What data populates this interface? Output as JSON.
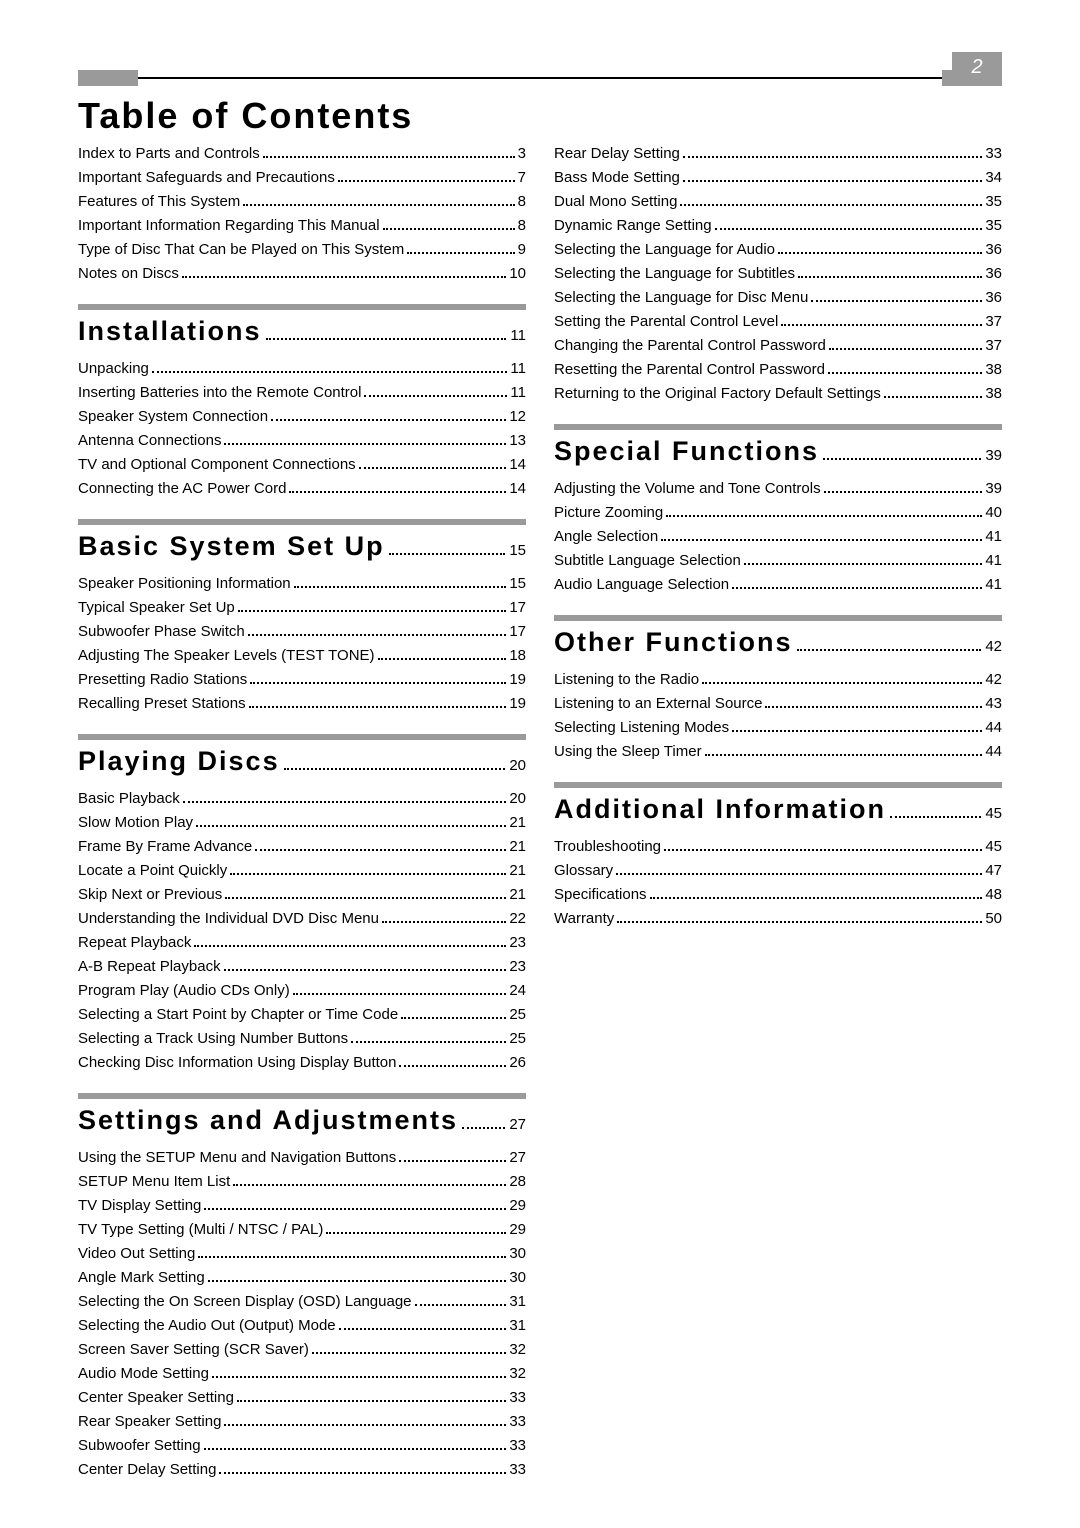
{
  "page": {
    "title": "Table of Contents",
    "page_number": "2",
    "colors": {
      "divider": "#9a9a9a",
      "text": "#000000",
      "page_tab_bg": "#9a9a9a",
      "page_tab_text": "#ffffff"
    }
  },
  "pre_section_items": [
    {
      "label": "Index to Parts and Controls",
      "page": "3"
    },
    {
      "label": "Important Safeguards and Precautions",
      "page": "7"
    },
    {
      "label": "Features of This System",
      "page": "8"
    },
    {
      "label": "Important Information Regarding This Manual",
      "page": "8"
    },
    {
      "label": "Type of Disc That Can be Played on This System",
      "page": "9"
    },
    {
      "label": "Notes on Discs",
      "page": "10"
    }
  ],
  "sections_left": [
    {
      "title": "Installations",
      "page": "11",
      "items": [
        {
          "label": "Unpacking",
          "page": "11"
        },
        {
          "label": "Inserting Batteries into the Remote Control",
          "page": "11"
        },
        {
          "label": "Speaker System Connection",
          "page": "12"
        },
        {
          "label": "Antenna Connections",
          "page": "13"
        },
        {
          "label": "TV and Optional Component Connections",
          "page": "14"
        },
        {
          "label": "Connecting the AC Power Cord",
          "page": "14"
        }
      ]
    },
    {
      "title": "Basic System Set Up",
      "page": "15",
      "items": [
        {
          "label": "Speaker Positioning Information",
          "page": "15"
        },
        {
          "label": "Typical Speaker Set Up",
          "page": "17"
        },
        {
          "label": "Subwoofer Phase Switch",
          "page": "17"
        },
        {
          "label": "Adjusting The Speaker Levels (TEST TONE)",
          "page": "18"
        },
        {
          "label": "Presetting Radio Stations",
          "page": "19"
        },
        {
          "label": "Recalling Preset Stations",
          "page": "19"
        }
      ]
    },
    {
      "title": "Playing Discs",
      "page": "20",
      "items": [
        {
          "label": "Basic Playback",
          "page": "20"
        },
        {
          "label": "Slow Motion Play",
          "page": "21"
        },
        {
          "label": "Frame By Frame Advance",
          "page": "21"
        },
        {
          "label": "Locate a Point Quickly",
          "page": "21"
        },
        {
          "label": "Skip Next or Previous",
          "page": "21"
        },
        {
          "label": "Understanding the Individual DVD Disc Menu",
          "page": "22"
        },
        {
          "label": "Repeat Playback",
          "page": "23"
        },
        {
          "label": "A-B Repeat Playback",
          "page": "23"
        },
        {
          "label": "Program Play (Audio CDs Only)",
          "page": "24"
        },
        {
          "label": "Selecting a Start Point by Chapter or Time Code",
          "page": "25"
        },
        {
          "label": "Selecting a Track Using Number Buttons",
          "page": "25"
        },
        {
          "label": "Checking Disc Information Using Display Button",
          "page": "26"
        }
      ]
    },
    {
      "title": "Settings and Adjustments",
      "page": "27",
      "items": [
        {
          "label": "Using the SETUP Menu and Navigation Buttons",
          "page": "27"
        },
        {
          "label": "SETUP Menu Item List",
          "page": "28"
        },
        {
          "label": "TV Display Setting",
          "page": "29"
        },
        {
          "label": "TV Type Setting (Multi / NTSC / PAL)",
          "page": "29"
        },
        {
          "label": "Video Out Setting",
          "page": "30"
        },
        {
          "label": "Angle Mark Setting",
          "page": "30"
        },
        {
          "label": "Selecting the On Screen Display (OSD) Language",
          "page": "31"
        },
        {
          "label": "Selecting the Audio Out (Output) Mode",
          "page": "31"
        },
        {
          "label": "Screen Saver Setting (SCR Saver)",
          "page": "32"
        },
        {
          "label": "Audio Mode Setting",
          "page": "32"
        },
        {
          "label": "Center Speaker Setting",
          "page": "33"
        },
        {
          "label": "Rear Speaker Setting",
          "page": "33"
        },
        {
          "label": "Subwoofer Setting",
          "page": "33"
        },
        {
          "label": "Center Delay Setting",
          "page": "33"
        }
      ]
    }
  ],
  "right_top_items": [
    {
      "label": "Rear Delay Setting",
      "page": "33"
    },
    {
      "label": "Bass Mode Setting",
      "page": "34"
    },
    {
      "label": "Dual Mono Setting",
      "page": "35"
    },
    {
      "label": "Dynamic Range Setting",
      "page": "35"
    },
    {
      "label": "Selecting the Language for Audio",
      "page": "36"
    },
    {
      "label": "Selecting the Language for Subtitles",
      "page": "36"
    },
    {
      "label": "Selecting the Language for Disc Menu",
      "page": "36"
    },
    {
      "label": "Setting the Parental Control Level",
      "page": "37"
    },
    {
      "label": "Changing the Parental Control Password",
      "page": "37"
    },
    {
      "label": "Resetting the Parental Control Password",
      "page": "38"
    },
    {
      "label": "Returning to the Original Factory Default Settings",
      "page": "38"
    }
  ],
  "sections_right": [
    {
      "title": "Special Functions",
      "page": "39",
      "items": [
        {
          "label": "Adjusting the Volume and Tone Controls",
          "page": "39"
        },
        {
          "label": "Picture Zooming",
          "page": "40"
        },
        {
          "label": "Angle Selection",
          "page": "41"
        },
        {
          "label": "Subtitle Language Selection",
          "page": "41"
        },
        {
          "label": "Audio Language Selection",
          "page": "41"
        }
      ]
    },
    {
      "title": "Other Functions",
      "page": "42",
      "items": [
        {
          "label": "Listening to the Radio",
          "page": "42"
        },
        {
          "label": "Listening to an External Source",
          "page": "43"
        },
        {
          "label": "Selecting Listening Modes",
          "page": "44"
        },
        {
          "label": "Using the Sleep Timer",
          "page": "44"
        }
      ]
    },
    {
      "title": "Additional Information",
      "page": "45",
      "items": [
        {
          "label": "Troubleshooting",
          "page": "45"
        },
        {
          "label": "Glossary",
          "page": "47"
        },
        {
          "label": "Specifications",
          "page": "48"
        },
        {
          "label": "Warranty",
          "page": "50"
        }
      ]
    }
  ]
}
